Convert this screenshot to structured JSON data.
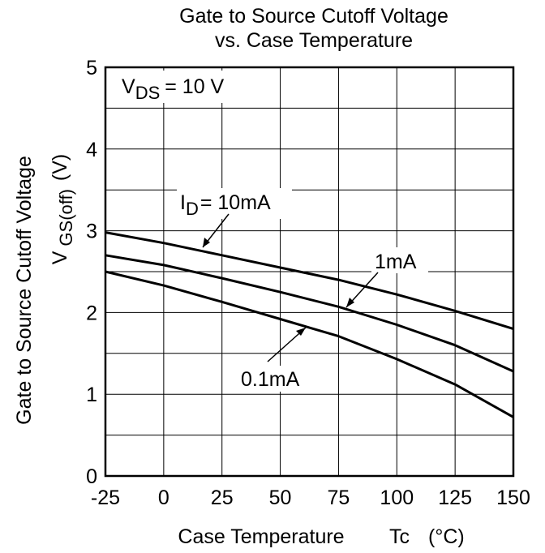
{
  "chart_data": {
    "type": "line",
    "title_line1": "Gate to Source Cutoff Voltage",
    "title_line2": "vs. Case Temperature",
    "xlabel": "Case Temperature",
    "xlabel_unit_symbol": "Tc",
    "xlabel_unit": "(°C)",
    "ylabel": "Gate to Source Cutoff Voltage",
    "ylabel_symbol": "V",
    "ylabel_subscript": "GS(off)",
    "ylabel_unit": "(V)",
    "xlim": [
      -25,
      150
    ],
    "ylim": [
      0,
      5
    ],
    "xticks": [
      -25,
      0,
      25,
      50,
      75,
      100,
      125,
      150
    ],
    "xtick_labels": [
      "-25",
      "0",
      "25",
      "50",
      "75",
      "100",
      "125",
      "150"
    ],
    "yticks": [
      0,
      1,
      2,
      3,
      4,
      5
    ],
    "ytick_labels": [
      "0",
      "1",
      "2",
      "3",
      "4",
      "5"
    ],
    "grid": true,
    "condition": {
      "symbol": "V",
      "subscript": "DS",
      "value": "= 10 V"
    },
    "series": [
      {
        "name": "10mA",
        "label_symbol": "I",
        "label_subscript": "D",
        "label_value": "= 10mA",
        "x": [
          -25,
          0,
          25,
          50,
          75,
          100,
          125,
          150
        ],
        "y": [
          2.98,
          2.85,
          2.7,
          2.55,
          2.4,
          2.22,
          2.02,
          1.8
        ]
      },
      {
        "name": "1mA",
        "label_value": "1mA",
        "x": [
          -25,
          0,
          25,
          50,
          75,
          100,
          125,
          150
        ],
        "y": [
          2.7,
          2.58,
          2.42,
          2.25,
          2.07,
          1.85,
          1.6,
          1.28
        ]
      },
      {
        "name": "0.1mA",
        "label_value": "0.1mA",
        "x": [
          -25,
          0,
          25,
          50,
          75,
          100,
          125,
          150
        ],
        "y": [
          2.5,
          2.33,
          2.13,
          1.92,
          1.71,
          1.43,
          1.12,
          0.72
        ]
      }
    ]
  }
}
